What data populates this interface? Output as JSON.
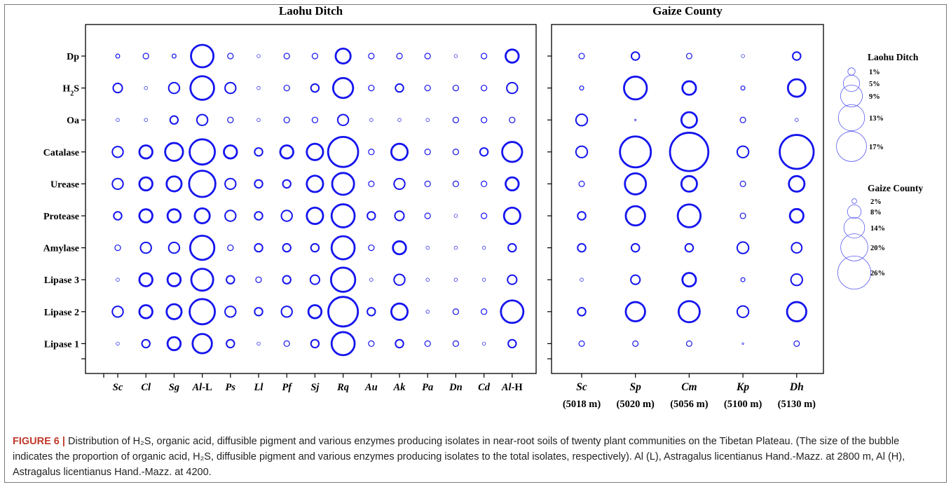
{
  "colors": {
    "bubble": "#1515ee",
    "axis": "#000000",
    "text": "#000000",
    "caption_label": "#c0392b"
  },
  "caption": {
    "label": "FIGURE 6 |",
    "text": " Distribution of H₂S, organic acid, diffusible pigment and various enzymes producing isolates in near-root soils of twenty plant communities on the Tibetan Plateau. (The size of the bubble indicates the proportion of organic acid, H₂S, diffusible pigment and various enzymes producing isolates to the total isolates, respectively). Al (L), Astragalus licentianus Hand.-Mazz. at 2800 m, Al (H), Astragalus licentianus Hand.-Mazz. at 4200."
  },
  "chart_data": [
    {
      "type": "scatter",
      "subtype": "bubble",
      "title": "Laohu Ditch",
      "xlabel": "",
      "ylabel": "",
      "categories": [
        "Sc",
        "Cl",
        "Sg",
        "Al-L",
        "Ps",
        "Ll",
        "Pf",
        "Sj",
        "Rq",
        "Au",
        "Ak",
        "Pa",
        "Dn",
        "Cd",
        "Al-H"
      ],
      "rows": [
        "Dp",
        "H2S",
        "Oa",
        "Catalase",
        "Urease",
        "Protease",
        "Amylase",
        "Lipase 3",
        "Lipase 2",
        "Lipase 1"
      ],
      "unit": "%",
      "values": [
        [
          0.3,
          0.6,
          0.3,
          9.5,
          0.6,
          0.2,
          0.6,
          0.6,
          4.2,
          0.6,
          0.6,
          0.6,
          0.2,
          0.6,
          3.2
        ],
        [
          1.6,
          0.2,
          2.2,
          10.5,
          2.2,
          0.2,
          0.6,
          1.2,
          7.5,
          0.6,
          1.2,
          0.6,
          0.6,
          0.6,
          2.2
        ],
        [
          0.2,
          0.2,
          1.2,
          2.2,
          0.6,
          0.2,
          0.6,
          0.6,
          2.2,
          0.2,
          0.2,
          0.2,
          0.6,
          0.6,
          0.6
        ],
        [
          2.2,
          3.2,
          6.0,
          12.0,
          3.2,
          1.2,
          3.2,
          5.0,
          17.0,
          0.6,
          5.0,
          0.6,
          0.6,
          1.2,
          7.5
        ],
        [
          2.2,
          3.2,
          4.2,
          13.0,
          2.2,
          1.2,
          1.2,
          5.0,
          9.0,
          0.6,
          2.2,
          0.6,
          0.6,
          0.6,
          3.2
        ],
        [
          1.2,
          3.2,
          3.2,
          4.2,
          2.2,
          1.2,
          2.2,
          5.0,
          10.0,
          1.2,
          1.6,
          0.6,
          0.2,
          0.6,
          5.0
        ],
        [
          0.6,
          2.2,
          2.2,
          11.0,
          0.6,
          1.2,
          1.2,
          1.2,
          10.0,
          0.6,
          3.2,
          0.2,
          0.2,
          0.2,
          1.2
        ],
        [
          0.2,
          3.2,
          3.2,
          9.0,
          1.2,
          0.6,
          1.2,
          1.6,
          11.0,
          0.2,
          2.2,
          0.2,
          0.2,
          0.2,
          1.6
        ],
        [
          2.2,
          3.2,
          4.2,
          12.0,
          2.2,
          1.2,
          2.2,
          3.2,
          16.5,
          1.2,
          5.0,
          0.2,
          0.6,
          0.6,
          9.5
        ],
        [
          0.2,
          1.2,
          3.2,
          7.0,
          1.2,
          0.2,
          0.6,
          1.2,
          10.0,
          0.6,
          1.2,
          0.6,
          0.6,
          0.2,
          1.2
        ]
      ],
      "legend": {
        "title": "Laohu Ditch",
        "sizes": [
          1,
          5,
          9,
          13,
          17
        ],
        "labels": [
          "1%",
          "5%",
          "9%",
          "13%",
          "17%"
        ],
        "position": "right"
      },
      "grid": false
    },
    {
      "type": "scatter",
      "subtype": "bubble",
      "title": "Gaize County",
      "xlabel": "",
      "ylabel": "",
      "categories": [
        "Sc",
        "Sp",
        "Cm",
        "Kp",
        "Dh"
      ],
      "category_sublabels": [
        "(5018 m)",
        "(5020 m)",
        "(5056 m)",
        "(5100 m)",
        "(5130 m)"
      ],
      "rows": [
        "Dp",
        "H2S",
        "Oa",
        "Catalase",
        "Urease",
        "Protease",
        "Amylase",
        "Lipase 3",
        "Lipase 2",
        "Lipase 1"
      ],
      "unit": "%",
      "values": [
        [
          3.0,
          5.0,
          3.0,
          1.5,
          5.0
        ],
        [
          2.0,
          20.0,
          10.0,
          2.0,
          14.0
        ],
        [
          8.0,
          0.5,
          12.0,
          3.0,
          1.5
        ],
        [
          8.0,
          30.0,
          40.0,
          8.0,
          34.0
        ],
        [
          3.0,
          18.0,
          12.0,
          3.0,
          12.0
        ],
        [
          5.0,
          16.0,
          20.0,
          3.0,
          10.0
        ],
        [
          5.0,
          5.0,
          5.0,
          8.0,
          7.0
        ],
        [
          1.5,
          6.0,
          10.0,
          2.0,
          8.0
        ],
        [
          5.0,
          16.0,
          18.0,
          8.0,
          16.0
        ],
        [
          3.0,
          3.0,
          3.0,
          0.5,
          3.0
        ]
      ],
      "legend": {
        "title": "Gaize County",
        "sizes": [
          2,
          8,
          14,
          20,
          26
        ],
        "labels": [
          "2%",
          "8%",
          "14%",
          "20%",
          "26%"
        ],
        "position": "right"
      },
      "grid": false
    }
  ]
}
